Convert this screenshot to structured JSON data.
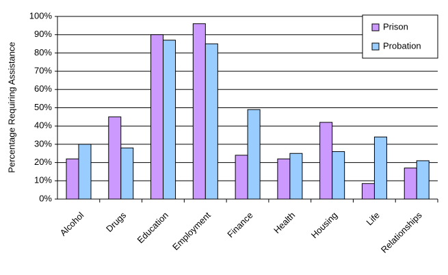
{
  "chart_data": {
    "type": "bar",
    "ylabel": "Percentage Requiring Assistance",
    "categories": [
      "Alcohol",
      "Drugs",
      "Education",
      "Employment",
      "Finance",
      "Health",
      "Housing",
      "Life",
      "Relationships"
    ],
    "series": [
      {
        "name": "Prison",
        "color": "#cc99ff",
        "values": [
          22,
          45,
          90,
          96,
          24,
          22,
          42,
          8.5,
          17
        ]
      },
      {
        "name": "Probation",
        "color": "#99ccff",
        "values": [
          30,
          28,
          87,
          85,
          49,
          25,
          26,
          34,
          21
        ]
      }
    ],
    "ylim": [
      0,
      100
    ],
    "yticks": [
      {
        "value": 0,
        "label": "0%"
      },
      {
        "value": 10,
        "label": "10%"
      },
      {
        "value": 20,
        "label": "20%"
      },
      {
        "value": 30,
        "label": "30%"
      },
      {
        "value": 40,
        "label": "40%"
      },
      {
        "value": 50,
        "label": "50%"
      },
      {
        "value": 60,
        "label": "60%"
      },
      {
        "value": 70,
        "label": "70%"
      },
      {
        "value": 80,
        "label": "80%"
      },
      {
        "value": 90,
        "label": "90%"
      },
      {
        "value": 100,
        "label": "100%"
      }
    ],
    "grid": true,
    "legend": "top-right"
  }
}
